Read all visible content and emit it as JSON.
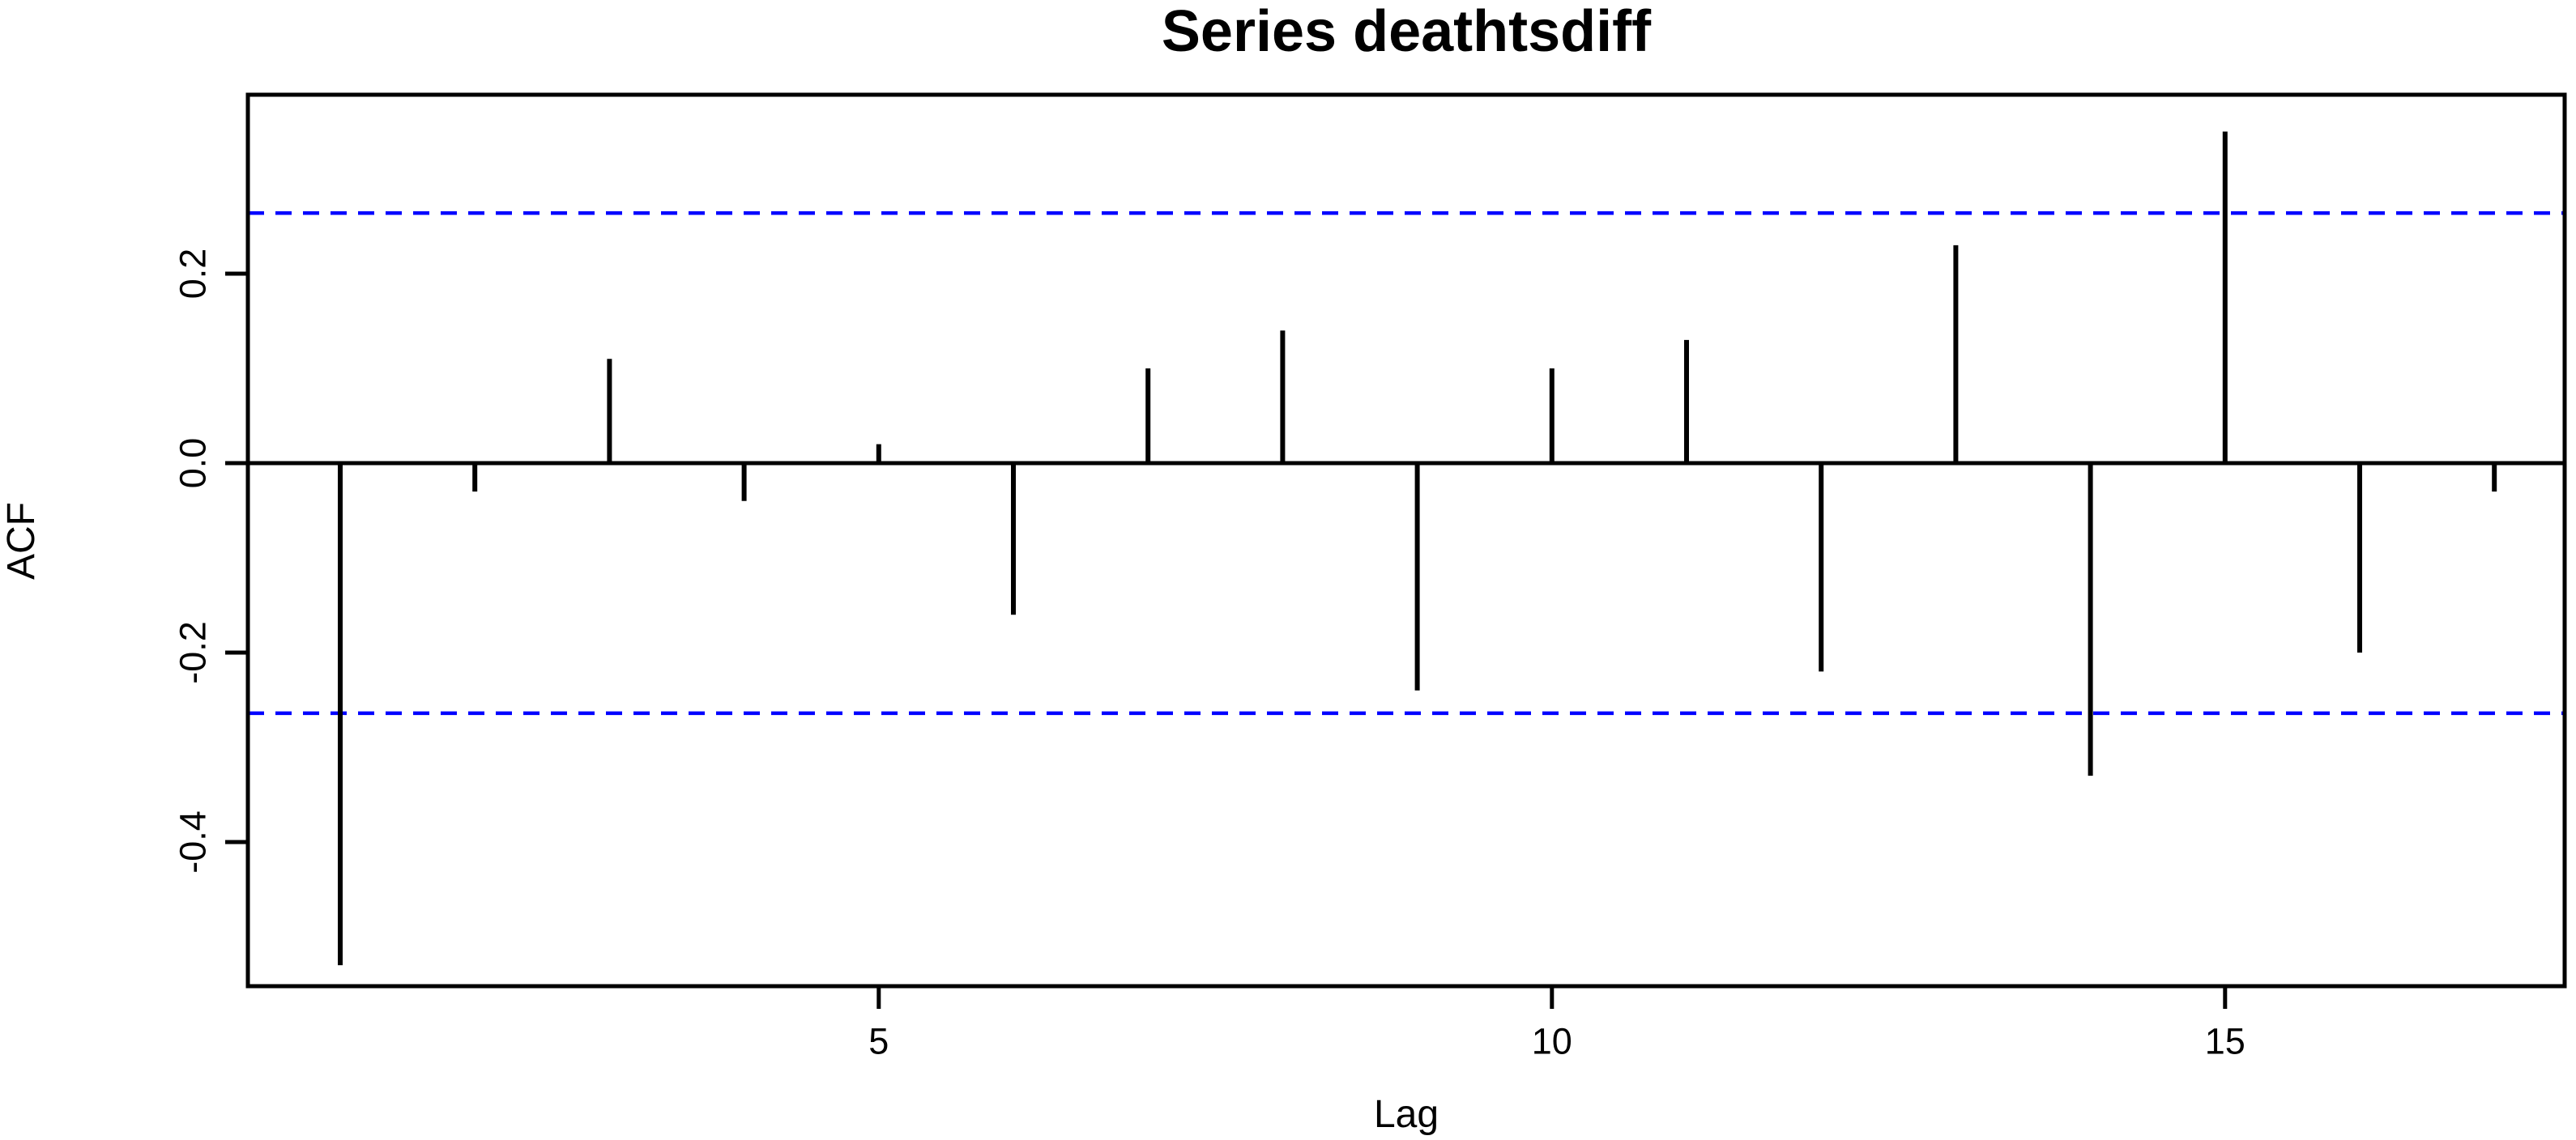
{
  "chart_data": {
    "type": "bar",
    "variant": "acf-stem-plot",
    "title": "Series  deathtsdiff",
    "xlabel": "Lag",
    "ylabel": "ACF",
    "x": [
      1,
      2,
      3,
      4,
      5,
      6,
      7,
      8,
      9,
      10,
      11,
      12,
      13,
      14,
      15,
      16,
      17
    ],
    "values": [
      -0.53,
      -0.03,
      0.11,
      -0.04,
      0.02,
      -0.16,
      0.1,
      0.14,
      -0.24,
      0.1,
      0.13,
      -0.22,
      0.23,
      -0.33,
      0.35,
      -0.2,
      -0.03
    ],
    "confidence_interval": 0.264,
    "x_ticks": [
      5,
      10,
      15
    ],
    "x_tick_labels": [
      "5",
      "10",
      "15"
    ],
    "y_ticks": [
      0.2,
      0.0,
      -0.2,
      -0.4
    ],
    "y_tick_labels": [
      "0.2",
      "0.0",
      "-0.2",
      "-0.4"
    ],
    "xlim": [
      0.3,
      17.55
    ],
    "ylim": [
      -0.552,
      0.389
    ],
    "grid": false,
    "legend": null,
    "colors": {
      "series": "#000000",
      "axis": "#000000",
      "confidence_line": "#0000ff",
      "background": "#ffffff"
    },
    "styles": {
      "confidence_line_style": "dashed"
    }
  }
}
